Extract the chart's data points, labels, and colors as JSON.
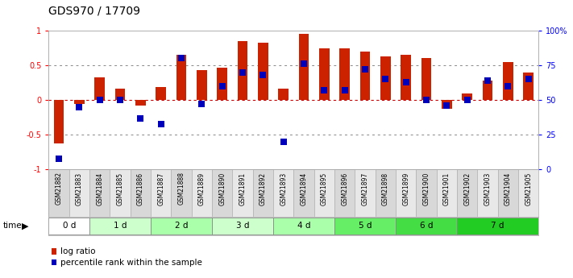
{
  "title": "GDS970 / 17709",
  "samples": [
    "GSM21882",
    "GSM21883",
    "GSM21884",
    "GSM21885",
    "GSM21886",
    "GSM21887",
    "GSM21888",
    "GSM21889",
    "GSM21890",
    "GSM21891",
    "GSM21892",
    "GSM21893",
    "GSM21894",
    "GSM21895",
    "GSM21896",
    "GSM21897",
    "GSM21898",
    "GSM21899",
    "GSM21900",
    "GSM21901",
    "GSM21902",
    "GSM21903",
    "GSM21904",
    "GSM21905"
  ],
  "log_ratio": [
    -0.62,
    -0.05,
    0.33,
    0.17,
    -0.08,
    0.19,
    0.65,
    0.43,
    0.47,
    0.85,
    0.82,
    0.17,
    0.95,
    0.75,
    0.75,
    0.7,
    0.63,
    0.65,
    0.6,
    -0.12,
    0.1,
    0.28,
    0.55,
    0.4
  ],
  "percentile": [
    8,
    45,
    50,
    50,
    37,
    33,
    80,
    47,
    60,
    70,
    68,
    20,
    76,
    57,
    57,
    72,
    65,
    63,
    50,
    46,
    50,
    64,
    60,
    65
  ],
  "groups": [
    {
      "label": "0 d",
      "start": 0,
      "end": 2,
      "color": "#ffffff"
    },
    {
      "label": "1 d",
      "start": 2,
      "end": 5,
      "color": "#ccffcc"
    },
    {
      "label": "2 d",
      "start": 5,
      "end": 8,
      "color": "#aaffaa"
    },
    {
      "label": "3 d",
      "start": 8,
      "end": 11,
      "color": "#ccffcc"
    },
    {
      "label": "4 d",
      "start": 11,
      "end": 14,
      "color": "#aaffaa"
    },
    {
      "label": "5 d",
      "start": 14,
      "end": 17,
      "color": "#66ee66"
    },
    {
      "label": "6 d",
      "start": 17,
      "end": 20,
      "color": "#44dd44"
    },
    {
      "label": "7 d",
      "start": 20,
      "end": 24,
      "color": "#22cc22"
    }
  ],
  "bar_color_red": "#cc2200",
  "bar_color_blue": "#0000bb",
  "ylim": [
    -1,
    1
  ],
  "y2lim": [
    0,
    100
  ],
  "yticks_left": [
    -1,
    -0.5,
    0,
    0.5,
    1
  ],
  "ytick_labels_left": [
    "-1",
    "-0.5",
    "0",
    "0.5",
    "1"
  ],
  "yticks_right": [
    0,
    25,
    50,
    75,
    100
  ],
  "ytick_labels_right": [
    "0",
    "25",
    "50",
    "75",
    "100%"
  ],
  "hlines_dotted": [
    0.5,
    -0.5
  ],
  "legend_log_ratio": "log ratio",
  "legend_percentile": "percentile rank within the sample",
  "time_label": "time",
  "bg_color": "#ffffff",
  "title_fontsize": 10,
  "tick_fontsize": 7,
  "bar_width": 0.5,
  "blue_square_size": 28,
  "label_bg_even": "#d8d8d8",
  "label_bg_odd": "#e8e8e8"
}
